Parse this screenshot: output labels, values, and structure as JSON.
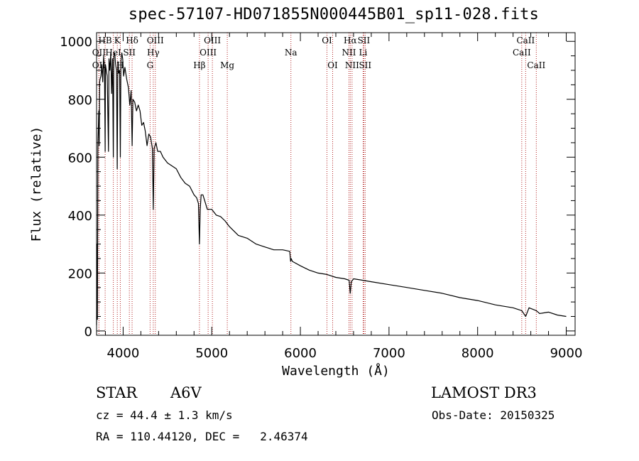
{
  "chart_data": {
    "type": "line",
    "title": "spec-57107-HD071855N000445B01_sp11-028.fits",
    "xlabel": "Wavelength (Å)",
    "ylabel": "Flux (relative)",
    "xlim": [
      3700,
      9100
    ],
    "ylim": [
      -15,
      1030
    ],
    "xticks": [
      4000,
      5000,
      6000,
      7000,
      8000,
      9000
    ],
    "yticks": [
      0,
      200,
      400,
      600,
      800,
      1000
    ],
    "series": [
      {
        "name": "flux",
        "x": [
          3700,
          3705,
          3710,
          3715,
          3720,
          3725,
          3730,
          3735,
          3740,
          3750,
          3760,
          3770,
          3780,
          3790,
          3797,
          3800,
          3810,
          3820,
          3835,
          3840,
          3850,
          3860,
          3870,
          3880,
          3889,
          3895,
          3905,
          3915,
          3925,
          3933,
          3940,
          3950,
          3960,
          3968,
          3975,
          3985,
          3995,
          4005,
          4020,
          4040,
          4060,
          4075,
          4090,
          4101,
          4110,
          4130,
          4150,
          4170,
          4190,
          4210,
          4230,
          4250,
          4270,
          4290,
          4310,
          4330,
          4340,
          4350,
          4370,
          4390,
          4420,
          4450,
          4500,
          4550,
          4600,
          4650,
          4700,
          4750,
          4800,
          4830,
          4850,
          4861,
          4870,
          4880,
          4900,
          4950,
          5000,
          5050,
          5100,
          5150,
          5200,
          5300,
          5400,
          5500,
          5600,
          5700,
          5800,
          5880,
          5890,
          5896,
          5910,
          6000,
          6100,
          6200,
          6300,
          6400,
          6500,
          6550,
          6563,
          6575,
          6600,
          6700,
          6800,
          7000,
          7200,
          7400,
          7600,
          7800,
          8000,
          8200,
          8400,
          8498,
          8542,
          8580,
          8662,
          8700,
          8800,
          8900,
          9000
        ],
        "values": [
          20,
          300,
          40,
          650,
          700,
          760,
          640,
          860,
          870,
          880,
          920,
          860,
          950,
          900,
          620,
          920,
          900,
          880,
          620,
          940,
          900,
          960,
          820,
          940,
          600,
          950,
          960,
          920,
          900,
          560,
          930,
          890,
          900,
          600,
          930,
          960,
          940,
          880,
          910,
          870,
          840,
          780,
          830,
          640,
          800,
          790,
          760,
          780,
          760,
          710,
          720,
          690,
          640,
          680,
          670,
          630,
          420,
          630,
          650,
          620,
          620,
          600,
          580,
          570,
          560,
          530,
          510,
          500,
          470,
          460,
          440,
          300,
          420,
          470,
          470,
          420,
          420,
          400,
          395,
          380,
          360,
          330,
          320,
          300,
          290,
          280,
          280,
          275,
          240,
          250,
          240,
          225,
          210,
          200,
          195,
          185,
          180,
          175,
          130,
          170,
          180,
          175,
          170,
          160,
          150,
          140,
          130,
          115,
          105,
          90,
          80,
          70,
          50,
          80,
          70,
          60,
          65,
          55,
          50
        ]
      }
    ],
    "lines": [
      {
        "label": "HB",
        "x": 3797,
        "row": 1
      },
      {
        "label": "OII",
        "x": 3727,
        "row": 2
      },
      {
        "label": "OII",
        "x": 3727,
        "row": 3
      },
      {
        "label": "K",
        "x": 3934,
        "row": 1
      },
      {
        "label": "HeI",
        "x": 3889,
        "row": 2
      },
      {
        "label": "H",
        "x": 3968,
        "row": 3
      },
      {
        "label": "Hδ",
        "x": 4101,
        "row": 1
      },
      {
        "label": "SII",
        "x": 4070,
        "row": 2
      },
      {
        "label": "OIII",
        "x": 4363,
        "row": 1
      },
      {
        "label": "Hγ",
        "x": 4340,
        "row": 2
      },
      {
        "label": "G",
        "x": 4304,
        "row": 3
      },
      {
        "label": "Hβ",
        "x": 4861,
        "row": 3
      },
      {
        "label": "OIII",
        "x": 5007,
        "row": 1
      },
      {
        "label": "OIII",
        "x": 4959,
        "row": 2
      },
      {
        "label": "Mg",
        "x": 5175,
        "row": 3
      },
      {
        "label": "Na",
        "x": 5893,
        "row": 2
      },
      {
        "label": "OI",
        "x": 6300,
        "row": 1
      },
      {
        "label": "OI",
        "x": 6364,
        "row": 3
      },
      {
        "label": "Hα",
        "x": 6563,
        "row": 1
      },
      {
        "label": "NII",
        "x": 6548,
        "row": 2
      },
      {
        "label": "NII",
        "x": 6583,
        "row": 3
      },
      {
        "label": "SII",
        "x": 6716,
        "row": 1
      },
      {
        "label": "Li",
        "x": 6708,
        "row": 2
      },
      {
        "label": "SII",
        "x": 6731,
        "row": 3
      },
      {
        "label": "CaII",
        "x": 8542,
        "row": 1
      },
      {
        "label": "CaII",
        "x": 8498,
        "row": 2
      },
      {
        "label": "CaII",
        "x": 8662,
        "row": 3
      }
    ]
  },
  "info": {
    "star": "STAR",
    "subclass": "A6V",
    "survey": "LAMOST DR3",
    "cz": "cz = 44.4 ± 1.3 km/s",
    "obs_date": "Obs-Date: 20150325",
    "coords": "RA = 110.44120, DEC =   2.46374"
  }
}
